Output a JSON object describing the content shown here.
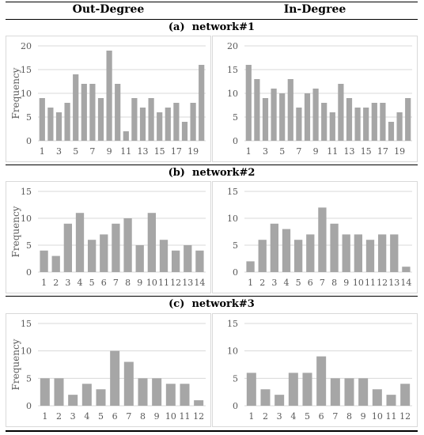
{
  "header": {
    "left": "Out-Degree",
    "right": "In-Degree"
  },
  "sections": [
    {
      "label": "(a)",
      "name": "network#1"
    },
    {
      "label": "(b)",
      "name": "network#2"
    },
    {
      "label": "(c)",
      "name": "network#3"
    }
  ],
  "ylabel": "Frequency",
  "colors": {
    "bar": "#a6a6a6",
    "grid": "#d9d9d9",
    "rule": "#000000"
  },
  "chart_data": [
    {
      "type": "bar",
      "network": "network#1",
      "panel": "Out-Degree",
      "categories": [
        "1",
        "2",
        "3",
        "4",
        "5",
        "6",
        "7",
        "8",
        "9",
        "10",
        "11",
        "12",
        "13",
        "14",
        "15",
        "16",
        "17",
        "18",
        "19",
        "20"
      ],
      "tick_labels": [
        "1",
        "",
        "3",
        "",
        "5",
        "",
        "7",
        "",
        "9",
        "",
        "11",
        "",
        "13",
        "",
        "15",
        "",
        "17",
        "",
        "19",
        ""
      ],
      "values": [
        9,
        7,
        6,
        8,
        14,
        12,
        12,
        9,
        19,
        12,
        2,
        9,
        7,
        9,
        6,
        7,
        8,
        4,
        8,
        16
      ],
      "ylabel": "Frequency",
      "ylim": [
        0,
        20
      ],
      "yticks": [
        0,
        5,
        10,
        15,
        20
      ],
      "grid": true
    },
    {
      "type": "bar",
      "network": "network#1",
      "panel": "In-Degree",
      "categories": [
        "1",
        "2",
        "3",
        "4",
        "5",
        "6",
        "7",
        "8",
        "9",
        "10",
        "11",
        "12",
        "13",
        "14",
        "15",
        "16",
        "17",
        "18",
        "19",
        "20"
      ],
      "tick_labels": [
        "1",
        "",
        "3",
        "",
        "5",
        "",
        "7",
        "",
        "9",
        "",
        "11",
        "",
        "13",
        "",
        "15",
        "",
        "17",
        "",
        "19",
        ""
      ],
      "values": [
        16,
        13,
        9,
        11,
        10,
        13,
        7,
        10,
        11,
        8,
        6,
        12,
        9,
        7,
        7,
        8,
        8,
        4,
        6,
        9
      ],
      "ylabel": "",
      "ylim": [
        0,
        20
      ],
      "yticks": [
        0,
        5,
        10,
        15,
        20
      ],
      "grid": true
    },
    {
      "type": "bar",
      "network": "network#2",
      "panel": "Out-Degree",
      "categories": [
        "1",
        "2",
        "3",
        "4",
        "5",
        "6",
        "7",
        "8",
        "9",
        "10",
        "11",
        "12",
        "13",
        "14"
      ],
      "tick_labels": [
        "1",
        "2",
        "3",
        "4",
        "5",
        "6",
        "7",
        "8",
        "9",
        "10",
        "11",
        "12",
        "13",
        "14"
      ],
      "values": [
        4,
        3,
        9,
        11,
        6,
        7,
        9,
        10,
        5,
        11,
        6,
        4,
        5,
        4
      ],
      "ylabel": "Frequency",
      "ylim": [
        0,
        15
      ],
      "yticks": [
        0,
        5,
        10,
        15
      ],
      "grid": true
    },
    {
      "type": "bar",
      "network": "network#2",
      "panel": "In-Degree",
      "categories": [
        "1",
        "2",
        "3",
        "4",
        "5",
        "6",
        "7",
        "8",
        "9",
        "10",
        "11",
        "12",
        "13",
        "14"
      ],
      "tick_labels": [
        "1",
        "2",
        "3",
        "4",
        "5",
        "6",
        "7",
        "8",
        "9",
        "10",
        "11",
        "12",
        "13",
        "14"
      ],
      "values": [
        2,
        6,
        9,
        8,
        6,
        7,
        12,
        9,
        7,
        7,
        6,
        7,
        7,
        1
      ],
      "ylabel": "",
      "ylim": [
        0,
        15
      ],
      "yticks": [
        0,
        5,
        10,
        15
      ],
      "grid": true
    },
    {
      "type": "bar",
      "network": "network#3",
      "panel": "Out-Degree",
      "categories": [
        "1",
        "2",
        "3",
        "4",
        "5",
        "6",
        "7",
        "8",
        "9",
        "10",
        "11",
        "12"
      ],
      "tick_labels": [
        "1",
        "2",
        "3",
        "4",
        "5",
        "6",
        "7",
        "8",
        "9",
        "10",
        "11",
        "12"
      ],
      "values": [
        5,
        5,
        2,
        4,
        3,
        10,
        8,
        5,
        5,
        4,
        4,
        1
      ],
      "ylabel": "Frequency",
      "ylim": [
        0,
        15
      ],
      "yticks": [
        0,
        5,
        10,
        15
      ],
      "grid": true
    },
    {
      "type": "bar",
      "network": "network#3",
      "panel": "In-Degree",
      "categories": [
        "1",
        "2",
        "3",
        "4",
        "5",
        "6",
        "7",
        "8",
        "9",
        "10",
        "11",
        "12"
      ],
      "tick_labels": [
        "1",
        "2",
        "3",
        "4",
        "5",
        "6",
        "7",
        "8",
        "9",
        "10",
        "11",
        "12"
      ],
      "values": [
        6,
        3,
        2,
        6,
        6,
        9,
        5,
        5,
        5,
        3,
        2,
        4
      ],
      "ylabel": "",
      "ylim": [
        0,
        15
      ],
      "yticks": [
        0,
        5,
        10,
        15
      ],
      "grid": true
    }
  ]
}
